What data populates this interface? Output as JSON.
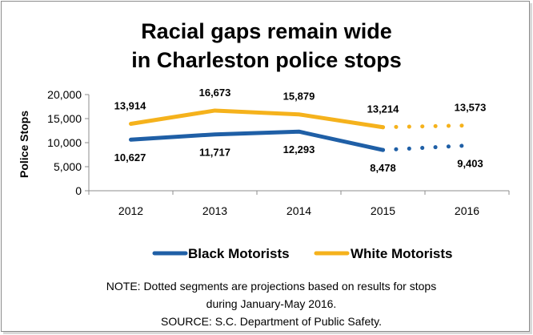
{
  "chart_data": {
    "type": "line",
    "title_lines": [
      "Racial gaps remain wide",
      "in Charleston police stops"
    ],
    "ylabel": "Police Stops",
    "xlabel": "",
    "categories": [
      "2012",
      "2013",
      "2014",
      "2015",
      "2016"
    ],
    "ylim": [
      0,
      20000
    ],
    "yticks": [
      0,
      5000,
      10000,
      15000,
      20000
    ],
    "ytick_labels": [
      "0",
      "5,000",
      "10,000",
      "15,000",
      "20,000"
    ],
    "grid": false,
    "legend_position": "bottom",
    "series": [
      {
        "name": "Black Motorists",
        "color": "#1f5fa6",
        "values": [
          10627,
          11717,
          12293,
          8478,
          9403
        ],
        "labels": [
          "10,627",
          "11,717",
          "12,293",
          "8,478",
          "9,403"
        ],
        "label_side": "below",
        "projected_from_index": 3
      },
      {
        "name": "White Motorists",
        "color": "#f5b21c",
        "values": [
          13914,
          16673,
          15879,
          13214,
          13573
        ],
        "labels": [
          "13,914",
          "16,673",
          "15,879",
          "13,214",
          "13,573"
        ],
        "label_side": "above",
        "projected_from_index": 3
      }
    ],
    "notes": [
      "NOTE: Dotted  segments are projections based on results for stops",
      "during January-May 2016.",
      "SOURCE: S.C. Department of Public Safety."
    ]
  }
}
